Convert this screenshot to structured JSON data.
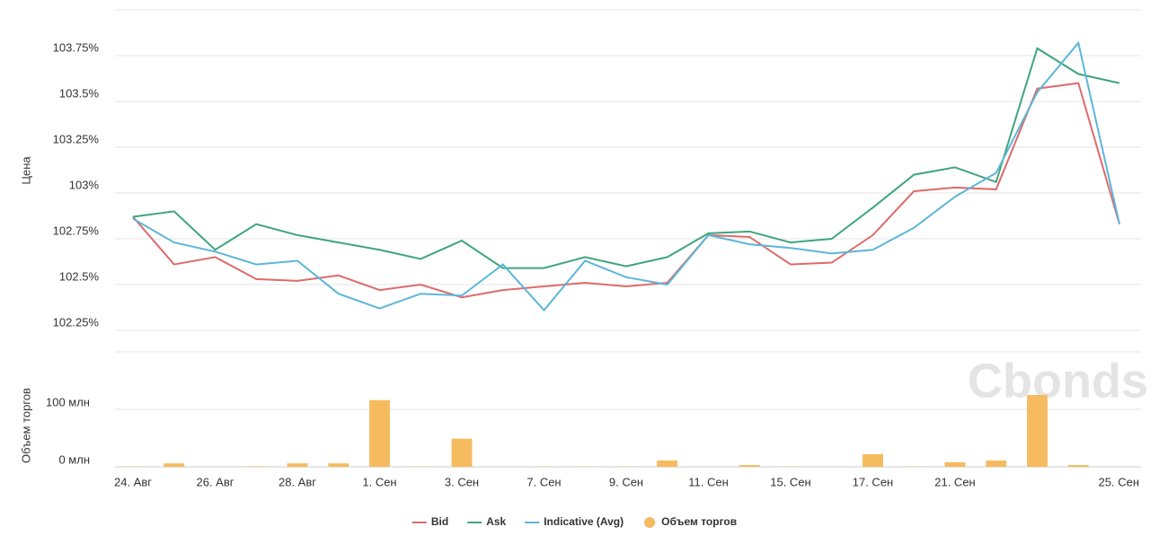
{
  "watermark": "Cbonds",
  "chart_data": [
    {
      "type": "line",
      "y_label": "Цена",
      "ylim": [
        102.25,
        104
      ],
      "yticks": [
        {
          "value": 102.25,
          "label": "102.25%"
        },
        {
          "value": 102.5,
          "label": "102.5%"
        },
        {
          "value": 102.75,
          "label": "102.75%"
        },
        {
          "value": 103,
          "label": "103%"
        },
        {
          "value": 103.25,
          "label": "103.25%"
        },
        {
          "value": 103.5,
          "label": "103.5%"
        },
        {
          "value": 103.75,
          "label": "103.75%"
        }
      ],
      "grid": true,
      "series": [
        {
          "name": "Bid",
          "color": "#dc6b6b",
          "values": [
            102.87,
            102.61,
            102.65,
            102.53,
            102.52,
            102.55,
            102.47,
            102.5,
            102.43,
            102.47,
            102.49,
            102.51,
            102.49,
            102.51,
            102.77,
            102.76,
            102.61,
            102.62,
            102.77,
            103.01,
            103.03,
            103.02,
            103.57,
            103.6,
            102.83
          ]
        },
        {
          "name": "Ask",
          "color": "#3fa57f",
          "values": [
            102.87,
            102.9,
            102.69,
            102.83,
            102.77,
            102.73,
            102.69,
            102.64,
            102.74,
            102.59,
            102.59,
            102.65,
            102.6,
            102.65,
            102.78,
            102.79,
            102.73,
            102.75,
            102.92,
            103.1,
            103.14,
            103.06,
            103.79,
            103.65,
            103.6
          ]
        },
        {
          "name": "Indicative (Avg)",
          "color": "#5cb6d8",
          "values": [
            102.86,
            102.73,
            102.68,
            102.61,
            102.63,
            102.45,
            102.37,
            102.45,
            102.44,
            102.61,
            102.36,
            102.63,
            102.54,
            102.5,
            102.77,
            102.72,
            102.7,
            102.67,
            102.69,
            102.81,
            102.98,
            103.11,
            103.55,
            103.82,
            102.83
          ]
        }
      ]
    },
    {
      "type": "bar",
      "y_label": "Объем торгов",
      "ylim": [
        0,
        200
      ],
      "yticks": [
        {
          "value": 0,
          "label": "0 млн"
        },
        {
          "value": 100,
          "label": "100 млн"
        }
      ],
      "grid": true,
      "categories": [
        "24. Авг",
        null,
        "26. Авг",
        null,
        "28. Авг",
        null,
        "1. Сен",
        null,
        "3. Сен",
        null,
        "7. Сен",
        null,
        "9. Сен",
        null,
        "11. Сен",
        null,
        "15. Сен",
        null,
        "17. Сен",
        null,
        "21. Сен",
        null,
        null,
        null,
        "25. Сен"
      ],
      "series": [
        {
          "name": "Объем торгов",
          "color": "#f5bb5e",
          "values": [
            0.5,
            6,
            0,
            1,
            6,
            6,
            116,
            0.5,
            49,
            0,
            0.5,
            0.5,
            0.5,
            11,
            0,
            3,
            0.5,
            0,
            22,
            0.5,
            8,
            11,
            125,
            3,
            0
          ]
        }
      ]
    }
  ]
}
